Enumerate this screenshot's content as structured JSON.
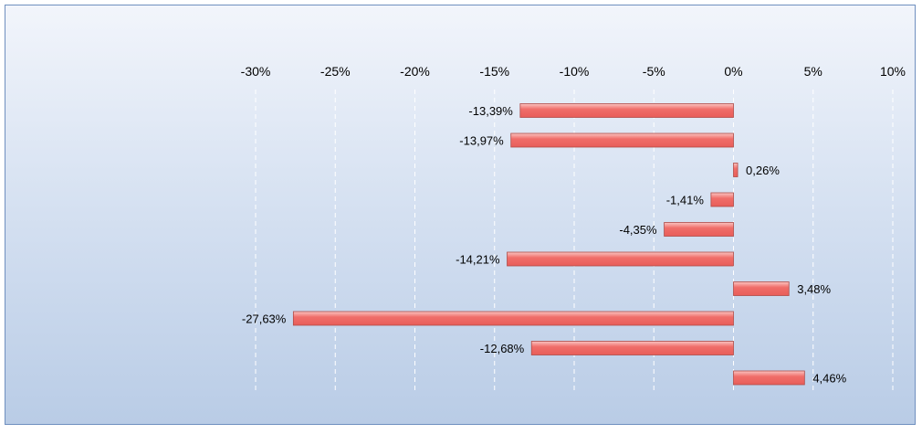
{
  "chart_data": {
    "type": "bar",
    "orientation": "horizontal",
    "xlim": [
      -30,
      10
    ],
    "x_ticks": [
      -30,
      -25,
      -20,
      -15,
      -10,
      -5,
      0,
      5,
      10
    ],
    "x_tick_labels": [
      "-30%",
      "-25%",
      "-20%",
      "-15%",
      "-10%",
      "-5%",
      "0%",
      "5%",
      "10%"
    ],
    "axis_position": "top",
    "grid": true,
    "series": [
      {
        "values": [
          -13.39,
          -13.97,
          0.26,
          -1.41,
          -4.35,
          -14.21,
          3.48,
          -27.63,
          -12.68,
          4.46
        ],
        "labels": [
          "-13,39%",
          "-13,97%",
          "0,26%",
          "-1,41%",
          "-4,35%",
          "-14,21%",
          "3,48%",
          "-27,63%",
          "-12,68%",
          "4,46%"
        ]
      }
    ]
  },
  "colors": {
    "bar_fill": "#f06e6a",
    "bar_highlight": "#fbc4c1",
    "bar_stroke": "#b04a46"
  }
}
